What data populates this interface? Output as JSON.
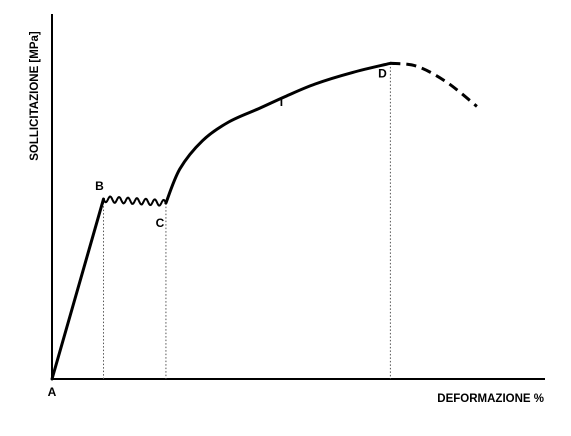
{
  "chart_data": {
    "type": "line",
    "title": "",
    "xlabel": "DEFORMAZIONE %",
    "ylabel": "SOLLICITAZIONE [MPa]",
    "grid": false,
    "legend": "none",
    "xlim": [
      0,
      100
    ],
    "ylim": [
      0,
      100
    ],
    "points": [
      {
        "name": "A",
        "label": "A",
        "x": 0,
        "y": 0
      },
      {
        "name": "B",
        "label": "B",
        "x": 13.7,
        "y": 49.7
      },
      {
        "name": "C",
        "label": "C",
        "x": 30.3,
        "y": 48.6
      },
      {
        "name": "I",
        "label": "I",
        "x": 61,
        "y": 76.8
      },
      {
        "name": "D",
        "label": "D",
        "x": 90,
        "y": 87.2
      }
    ],
    "segments": [
      {
        "name": "elastic",
        "style": "solid",
        "points": [
          [
            0,
            0
          ],
          [
            13.7,
            49.7
          ]
        ]
      },
      {
        "name": "yield",
        "style": "wavy",
        "points": [
          [
            13.7,
            49.7
          ],
          [
            30.3,
            48.6
          ]
        ]
      },
      {
        "name": "hardening",
        "style": "solid",
        "points": [
          [
            30.3,
            48.6
          ],
          [
            34,
            58
          ],
          [
            40,
            65.8
          ],
          [
            47,
            71
          ],
          [
            55,
            74.7
          ],
          [
            62,
            78
          ],
          [
            70,
            81.5
          ],
          [
            80,
            84.7
          ],
          [
            90,
            87.2
          ]
        ]
      },
      {
        "name": "necking",
        "style": "dashed",
        "points": [
          [
            90,
            87.2
          ],
          [
            97,
            86.4
          ],
          [
            105,
            82
          ],
          [
            113,
            75.3
          ]
        ]
      }
    ],
    "guides": [
      {
        "name": "guide-b",
        "x": 13.7,
        "y": 49.7
      },
      {
        "name": "guide-c",
        "x": 30.3,
        "y": 48.6
      },
      {
        "name": "guide-d",
        "x": 90,
        "y": 87.2
      }
    ],
    "colors": {
      "line": "#000000",
      "guide": "#555555"
    }
  }
}
